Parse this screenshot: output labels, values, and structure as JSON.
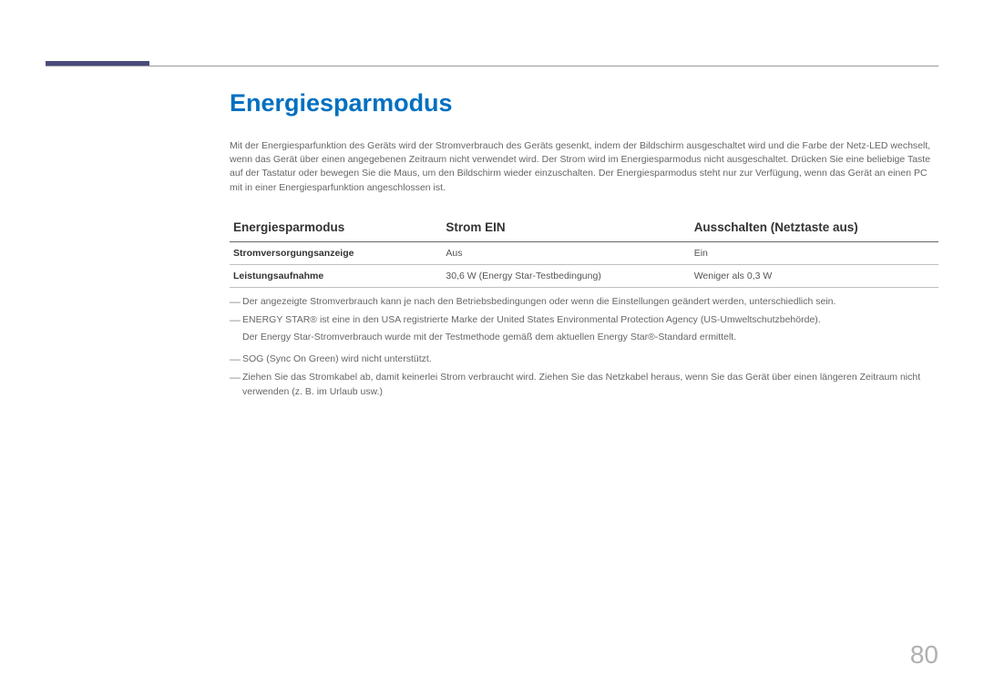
{
  "page": {
    "title": "Energiesparmodus",
    "intro": "Mit der Energiesparfunktion des Geräts wird der Stromverbrauch des Geräts gesenkt, indem der Bildschirm ausgeschaltet wird und die Farbe der Netz-LED wechselt, wenn das Gerät über einen angegebenen Zeitraum nicht verwendet wird. Der Strom wird im Energiesparmodus nicht ausgeschaltet. Drücken Sie eine beliebige Taste auf der Tastatur oder bewegen Sie die Maus, um den Bildschirm wieder einzuschalten. Der Energiesparmodus steht nur zur Verfügung, wenn das Gerät an einen PC mit in einer Energiesparfunktion angeschlossen ist.",
    "page_number": "80"
  },
  "table": {
    "headers": {
      "col1": "Energiesparmodus",
      "col2": "Strom EIN",
      "col3": "Ausschalten (Netztaste aus)"
    },
    "rows": [
      {
        "label": "Stromversorgungsanzeige",
        "c2": "Aus",
        "c3": "Ein"
      },
      {
        "label": "Leistungsaufnahme",
        "c2": "30,6 W (Energy Star-Testbedingung)",
        "c3": "Weniger als 0,3 W"
      }
    ]
  },
  "notes": {
    "n1": "Der angezeigte Stromverbrauch kann je nach den Betriebsbedingungen oder wenn die Einstellungen geändert werden, unterschiedlich sein.",
    "n2": "ENERGY STAR® ist eine in den USA registrierte Marke der United States Environmental Protection Agency (US-Umweltschutzbehörde).",
    "n2sub": "Der Energy Star-Stromverbrauch wurde mit der Testmethode gemäß dem aktuellen Energy Star®-Standard ermittelt.",
    "n3": "SOG (Sync On Green) wird nicht unterstützt.",
    "n4": "Ziehen Sie das Stromkabel ab, damit keinerlei Strom verbraucht wird. Ziehen Sie das Netzkabel heraus, wenn Sie das Gerät über einen längeren Zeitraum nicht verwenden (z. B. im Urlaub usw.)"
  },
  "style": {
    "accent_color": "#4a4a7a",
    "title_color": "#0070c0",
    "text_color": "#666666",
    "rule_color": "#999999",
    "page_number_color": "#b0b0b0"
  }
}
